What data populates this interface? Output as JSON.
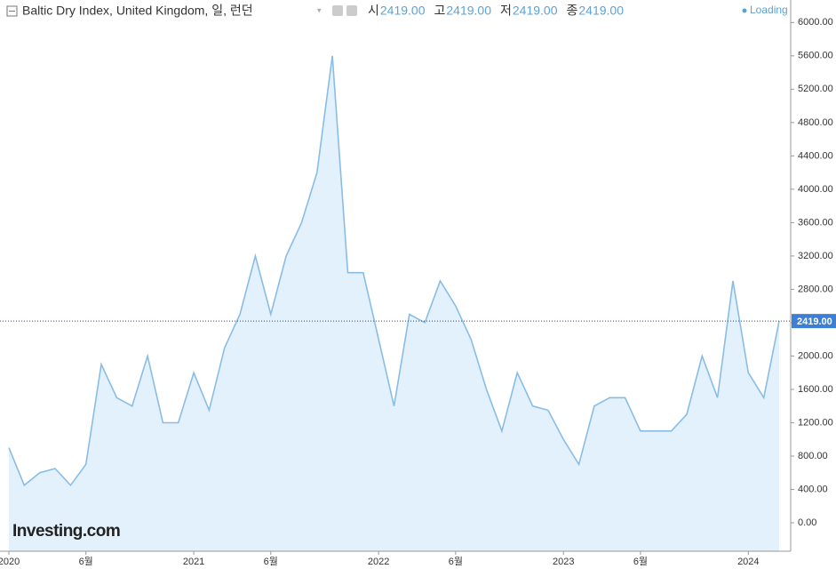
{
  "chart_data": {
    "type": "area",
    "title": "Baltic Dry Index, United Kingdom, 일, 런던",
    "ohlc": [
      {
        "label": "시",
        "value": "2419.00"
      },
      {
        "label": "고",
        "value": "2419.00"
      },
      {
        "label": "저",
        "value": "2419.00"
      },
      {
        "label": "종",
        "value": "2419.00"
      }
    ],
    "status": "Loading",
    "watermark": "Investing.com",
    "line_color": "#89bde6",
    "fill_color": "#e2f1fb",
    "x": [
      "2020-01",
      "2020-02",
      "2020-03",
      "2020-04",
      "2020-05",
      "2020-06",
      "2020-07",
      "2020-08",
      "2020-09",
      "2020-10",
      "2020-11",
      "2020-12",
      "2021-01",
      "2021-02",
      "2021-03",
      "2021-04",
      "2021-05",
      "2021-06",
      "2021-07",
      "2021-08",
      "2021-09",
      "2021-10",
      "2021-11",
      "2021-12",
      "2022-01",
      "2022-02",
      "2022-03",
      "2022-04",
      "2022-05",
      "2022-06",
      "2022-07",
      "2022-08",
      "2022-09",
      "2022-10",
      "2022-11",
      "2022-12",
      "2023-01",
      "2023-02",
      "2023-03",
      "2023-04",
      "2023-05",
      "2023-06",
      "2023-07",
      "2023-08",
      "2023-09",
      "2023-10",
      "2023-11",
      "2023-12",
      "2024-01",
      "2024-02",
      "2024-03"
    ],
    "values": [
      900,
      450,
      600,
      650,
      450,
      700,
      1900,
      1500,
      1400,
      2000,
      1200,
      1200,
      1800,
      1350,
      2100,
      2500,
      3200,
      2500,
      3200,
      3600,
      4200,
      5600,
      3000,
      3000,
      2200,
      1400,
      2500,
      2400,
      2900,
      2600,
      2200,
      1600,
      1100,
      1800,
      1400,
      1350,
      1000,
      700,
      1400,
      1500,
      1500,
      1100,
      1100,
      1100,
      1300,
      2000,
      1500,
      2900,
      1800,
      1500,
      2419
    ],
    "current": {
      "value": 2419,
      "label": "2419.00"
    },
    "xlim": [
      "2020-01",
      "2024-03"
    ],
    "xticks": [
      {
        "value": "2020-01",
        "label": "2020"
      },
      {
        "value": "2020-06",
        "label": "6월"
      },
      {
        "value": "2021-01",
        "label": "2021"
      },
      {
        "value": "2021-06",
        "label": "6월"
      },
      {
        "value": "2022-01",
        "label": "2022"
      },
      {
        "value": "2022-06",
        "label": "6월"
      },
      {
        "value": "2023-01",
        "label": "2023"
      },
      {
        "value": "2023-06",
        "label": "6월"
      },
      {
        "value": "2024-01",
        "label": "2024"
      }
    ],
    "ylim": [
      -320,
      6270
    ],
    "yticks": [
      {
        "value": 0,
        "label": "0.00"
      },
      {
        "value": 400,
        "label": "400.00"
      },
      {
        "value": 800,
        "label": "800.00"
      },
      {
        "value": 1200,
        "label": "1200.00"
      },
      {
        "value": 1600,
        "label": "1600.00"
      },
      {
        "value": 2000,
        "label": "2000.00"
      },
      {
        "value": 2400,
        "label": "2400.00"
      },
      {
        "value": 2800,
        "label": "2800.00"
      },
      {
        "value": 3200,
        "label": "3200.00"
      },
      {
        "value": 3600,
        "label": "3600.00"
      },
      {
        "value": 4000,
        "label": "4000.00"
      },
      {
        "value": 4400,
        "label": "4400.00"
      },
      {
        "value": 4800,
        "label": "4800.00"
      },
      {
        "value": 5200,
        "label": "5200.00"
      },
      {
        "value": 5600,
        "label": "5600.00"
      },
      {
        "value": 6000,
        "label": "6000.00"
      }
    ]
  }
}
